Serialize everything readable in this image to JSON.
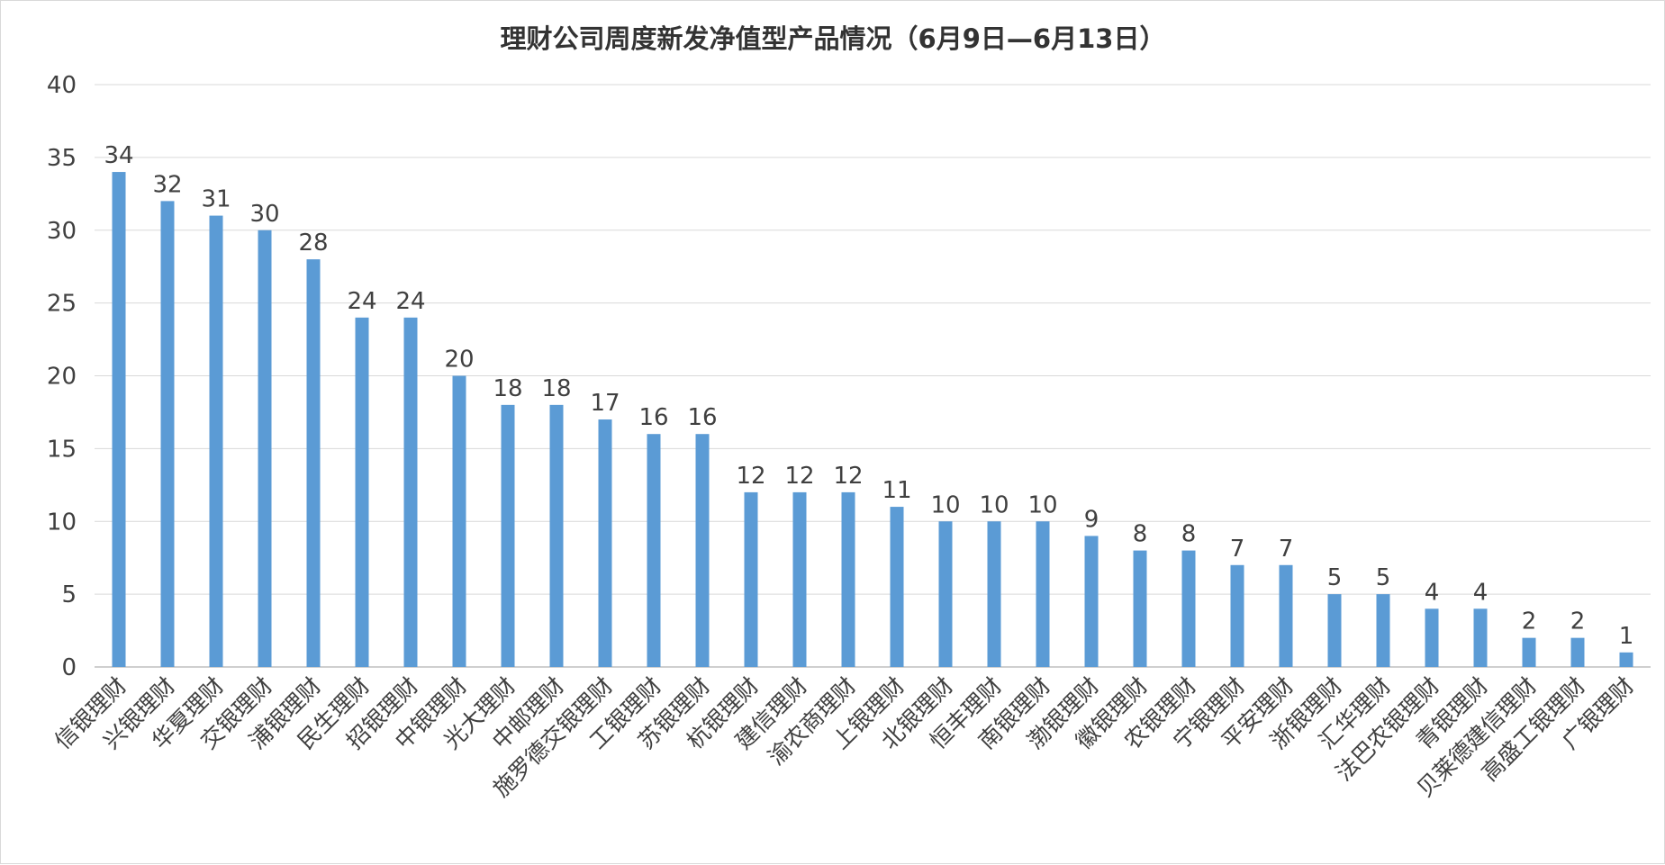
{
  "chart_data": {
    "type": "bar",
    "title": "理财公司周度新发净值型产品情况（6月9日—6月13日）",
    "xlabel": "",
    "ylabel": "",
    "ylim": [
      0,
      40
    ],
    "yticks": [
      0,
      5,
      10,
      15,
      20,
      25,
      30,
      35,
      40
    ],
    "grid": true,
    "legend": "none",
    "bar_color": "#5b9bd5",
    "categories": [
      "信银理财",
      "兴银理财",
      "华夏理财",
      "交银理财",
      "浦银理财",
      "民生理财",
      "招银理财",
      "中银理财",
      "光大理财",
      "中邮理财",
      "施罗德交银理财",
      "工银理财",
      "苏银理财",
      "杭银理财",
      "建信理财",
      "渝农商理财",
      "上银理财",
      "北银理财",
      "恒丰理财",
      "南银理财",
      "渤银理财",
      "徽银理财",
      "农银理财",
      "宁银理财",
      "平安理财",
      "浙银理财",
      "汇华理财",
      "法巴农银理财",
      "青银理财",
      "贝莱德建信理财",
      "高盛工银理财",
      "广银理财"
    ],
    "values": [
      34,
      32,
      31,
      30,
      28,
      24,
      24,
      20,
      18,
      18,
      17,
      16,
      16,
      12,
      12,
      12,
      11,
      10,
      10,
      10,
      9,
      8,
      8,
      7,
      7,
      5,
      5,
      4,
      4,
      2,
      2,
      1
    ]
  }
}
